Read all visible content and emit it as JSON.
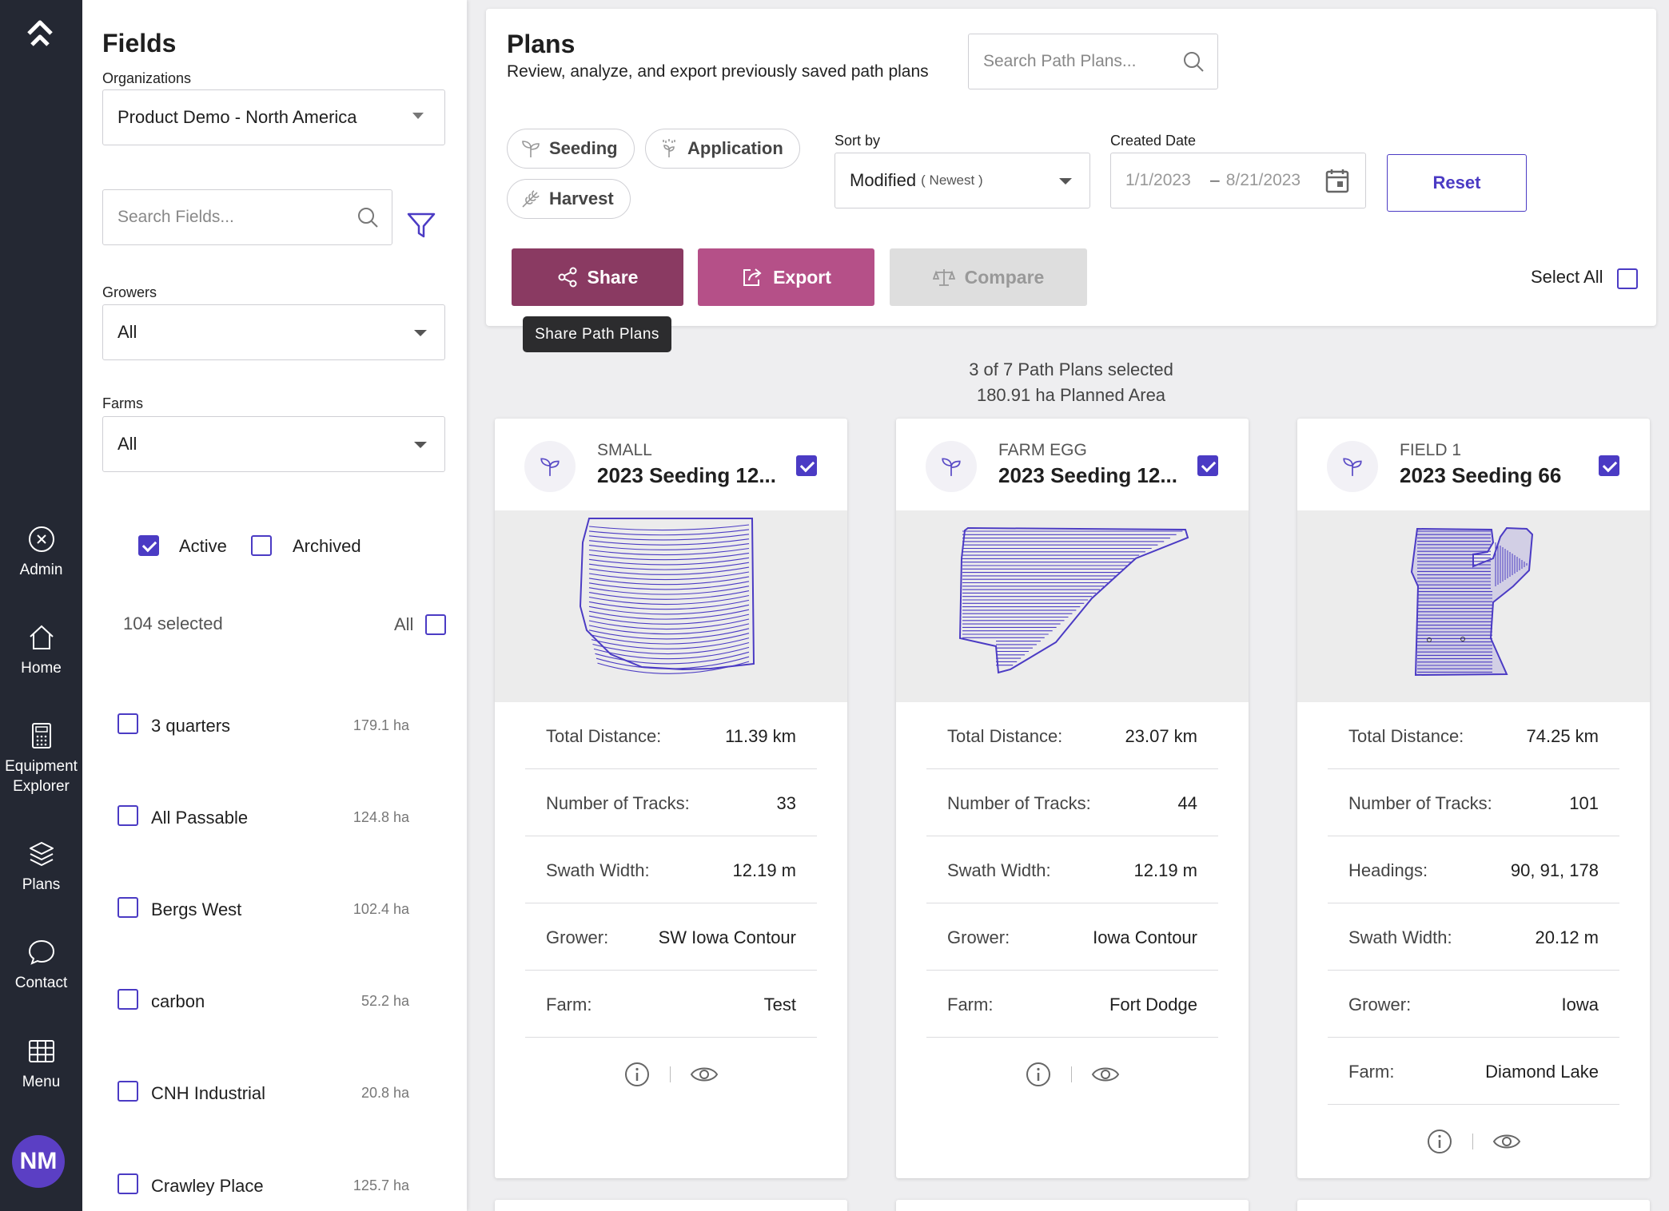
{
  "rail": {
    "items": [
      {
        "label": "Admin"
      },
      {
        "label": "Home"
      },
      {
        "label": "Equipment Explorer"
      },
      {
        "label": "Plans"
      },
      {
        "label": "Contact"
      },
      {
        "label": "Menu"
      }
    ],
    "avatar": "NM"
  },
  "fields_panel": {
    "title": "Fields",
    "organizations_label": "Organizations",
    "organization_value": "Product Demo - North America",
    "search_placeholder": "Search Fields...",
    "growers_label": "Growers",
    "growers_value": "All",
    "farms_label": "Farms",
    "farms_value": "All",
    "active_label": "Active",
    "active_checked": true,
    "archived_label": "Archived",
    "archived_checked": false,
    "selected_count": "104 selected",
    "all_label": "All",
    "fields": [
      {
        "name": "3 quarters",
        "area": "179.1 ha"
      },
      {
        "name": "All Passable",
        "area": "124.8 ha"
      },
      {
        "name": "Bergs West",
        "area": "102.4 ha"
      },
      {
        "name": "carbon",
        "area": "52.2 ha"
      },
      {
        "name": "CNH Industrial",
        "area": "20.8 ha"
      },
      {
        "name": "Crawley Place",
        "area": "125.7 ha"
      }
    ]
  },
  "plans": {
    "title": "Plans",
    "subtitle": "Review, analyze, and export previously saved path plans",
    "search_placeholder": "Search Path Plans...",
    "chips": [
      "Seeding",
      "Application",
      "Harvest"
    ],
    "sort_label": "Sort by",
    "sort_value": "Modified",
    "sort_sub": "( Newest )",
    "created_label": "Created Date",
    "date_from": "1/1/2023",
    "date_sep": "–",
    "date_to": "8/21/2023",
    "reset": "Reset",
    "share": "Share",
    "export": "Export",
    "compare": "Compare",
    "select_all": "Select All",
    "tooltip": "Share Path Plans",
    "summary_line1": "3 of 7 Path Plans selected",
    "summary_line2": "180.91 ha Planned Area"
  },
  "colors": {
    "accent": "#4b3bc4",
    "share": "#8a3a62",
    "export": "#b55088",
    "compare": "#dedede",
    "rail": "#242833"
  },
  "cards": [
    {
      "field": "SMALL",
      "name": "2023 Seeding 12...",
      "checked": true,
      "stats": [
        {
          "k": "Total Distance:",
          "v": "11.39 km"
        },
        {
          "k": "Number of Tracks:",
          "v": "33"
        },
        {
          "k": "Swath Width:",
          "v": "12.19 m"
        },
        {
          "k": "Grower:",
          "v": "SW Iowa Contour"
        },
        {
          "k": "Farm:",
          "v": "Test"
        }
      ]
    },
    {
      "field": "FARM EGG",
      "name": "2023 Seeding 12...",
      "checked": true,
      "stats": [
        {
          "k": "Total Distance:",
          "v": "23.07 km"
        },
        {
          "k": "Number of Tracks:",
          "v": "44"
        },
        {
          "k": "Swath Width:",
          "v": "12.19 m"
        },
        {
          "k": "Grower:",
          "v": "Iowa Contour"
        },
        {
          "k": "Farm:",
          "v": "Fort Dodge"
        }
      ]
    },
    {
      "field": "FIELD 1",
      "name": "2023 Seeding 66",
      "checked": true,
      "stats": [
        {
          "k": "Total Distance:",
          "v": "74.25 km"
        },
        {
          "k": "Number of Tracks:",
          "v": "101"
        },
        {
          "k": "Headings:",
          "v": "90, 91, 178"
        },
        {
          "k": "Swath Width:",
          "v": "20.12 m"
        },
        {
          "k": "Grower:",
          "v": "Iowa"
        },
        {
          "k": "Farm:",
          "v": "Diamond Lake"
        }
      ]
    }
  ]
}
